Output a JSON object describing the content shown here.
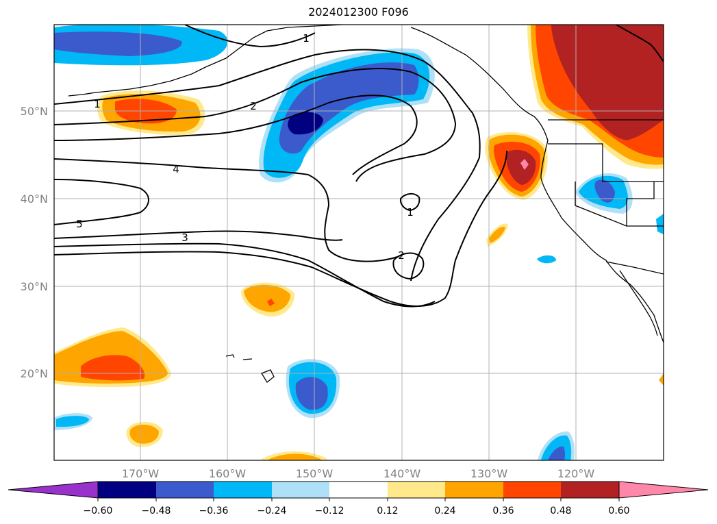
{
  "title": "2024012300 F096",
  "map": {
    "lat_labels": [
      "50°N",
      "40°N",
      "30°N",
      "20°N"
    ],
    "lon_labels": [
      "170°W",
      "160°W",
      "150°W",
      "140°W",
      "130°W",
      "120°W"
    ],
    "contour_labels": [
      "1",
      "2",
      "3",
      "4",
      "5",
      "1",
      "2",
      "1"
    ]
  },
  "colorbar": {
    "ticks": [
      "−0.60",
      "−0.48",
      "−0.36",
      "−0.24",
      "−0.12",
      "0.12",
      "0.24",
      "0.36",
      "0.48",
      "0.60"
    ],
    "colors": {
      "under": "#9932cc",
      "neg_060": "#000080",
      "neg_048": "#3b5bcc",
      "neg_036": "#00b8f5",
      "neg_024": "#aee0f7",
      "neutral": "#ffffff",
      "pos_012": "#ffe98a",
      "pos_024": "#ffa500",
      "pos_036": "#ff4500",
      "pos_048": "#b22222",
      "over": "#ff88aa"
    }
  }
}
